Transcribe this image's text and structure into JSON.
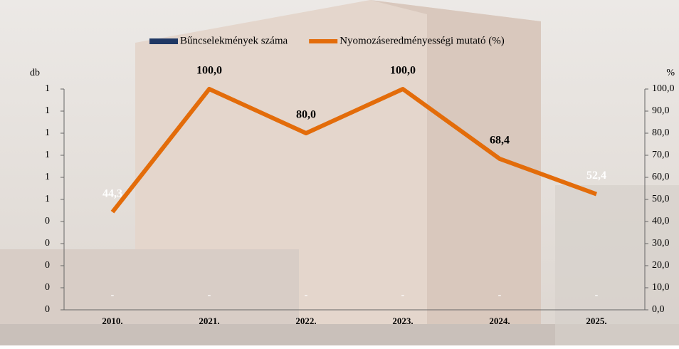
{
  "chart_data": {
    "type": "bar-line",
    "categories": [
      "2010.",
      "2021.",
      "2022.",
      "2023.",
      "2024.",
      "2025."
    ],
    "series": [
      {
        "name": "Bűncselekmények száma",
        "type": "bar",
        "color": "#1f3864",
        "values": [
          0,
          0,
          0,
          0,
          0,
          0
        ],
        "value_labels": [
          "-",
          "-",
          "-",
          "-",
          "-",
          "-"
        ],
        "value_label_color": "#ffffff"
      },
      {
        "name": "Nyomozáseredményességi mutató (%)",
        "type": "line",
        "axis": "y2",
        "color": "#e36c0a",
        "values": [
          44.3,
          100,
          80,
          100,
          68.4,
          52.4
        ],
        "value_labels": [
          "44,3",
          "100,0",
          "80,0",
          "100,0",
          "68,4",
          "52,4"
        ],
        "value_label_colors": [
          "#ffffff",
          "#000000",
          "#000000",
          "#000000",
          "#000000",
          "#ffffff"
        ]
      }
    ],
    "ylabel": "db",
    "y2label": "%",
    "ylim": [
      0,
      1
    ],
    "yticks": [
      {
        "value": 0,
        "label": "0"
      },
      {
        "value": 0.1,
        "label": "0"
      },
      {
        "value": 0.2,
        "label": "0"
      },
      {
        "value": 0.3,
        "label": "0"
      },
      {
        "value": 0.4,
        "label": "0"
      },
      {
        "value": 0.5,
        "label": "1"
      },
      {
        "value": 0.6,
        "label": "1"
      },
      {
        "value": 0.7,
        "label": "1"
      },
      {
        "value": 0.8,
        "label": "1"
      },
      {
        "value": 0.9,
        "label": "1"
      },
      {
        "value": 1,
        "label": "1"
      }
    ],
    "y2lim": [
      0,
      100
    ],
    "y2ticks": [
      {
        "value": 0,
        "label": "0,0"
      },
      {
        "value": 10,
        "label": "10,0"
      },
      {
        "value": 20,
        "label": "20,0"
      },
      {
        "value": 30,
        "label": "30,0"
      },
      {
        "value": 40,
        "label": "40,0"
      },
      {
        "value": 50,
        "label": "50,0"
      },
      {
        "value": 60,
        "label": "60,0"
      },
      {
        "value": 70,
        "label": "70,0"
      },
      {
        "value": 80,
        "label": "80,0"
      },
      {
        "value": 90,
        "label": "90,0"
      },
      {
        "value": 100,
        "label": "100,0"
      }
    ],
    "legend": "top"
  }
}
